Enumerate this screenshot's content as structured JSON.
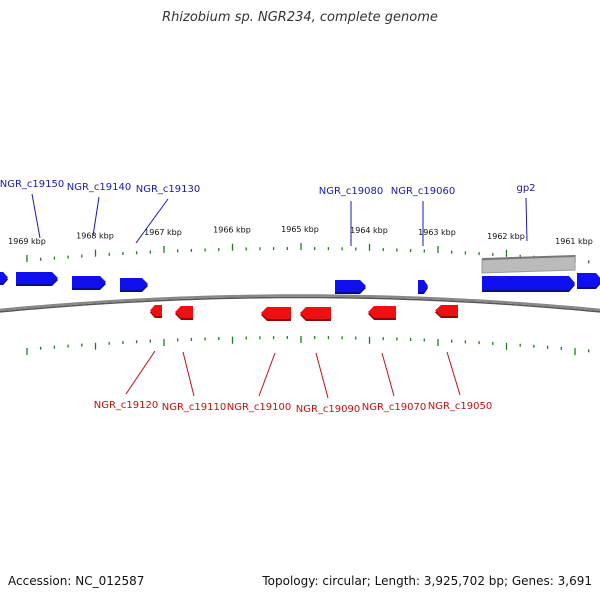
{
  "title": "Rhizobium sp. NGR234, complete genome",
  "footer": {
    "accession": "Accession: NC_012587",
    "summary": "Topology: circular; Length: 3,925,702 bp; Genes: 3,691"
  },
  "colors": {
    "forward_gene": "#1010ee",
    "reverse_gene": "#ee1010",
    "forward_label": "#1a1aa8",
    "reverse_label": "#b81414",
    "tick": "#1e7d1e",
    "backbone": "#888888",
    "other_feature": "#bbbbbb",
    "scale_text": "#111111"
  },
  "scale_labels": [
    "1969 kbp",
    "1968 kbp",
    "1967 kbp",
    "1966 kbp",
    "1965 kbp",
    "1964 kbp",
    "1963 kbp",
    "1962 kbp",
    "1961 kbp"
  ],
  "forward_gene_labels": [
    "NGR_c19150",
    "NGR_c19140",
    "NGR_c19130",
    "NGR_c19080",
    "NGR_c19060",
    "gp2"
  ],
  "reverse_gene_labels": [
    "NGR_c19120",
    "NGR_c19110",
    "NGR_c19100",
    "NGR_c19090",
    "NGR_c19070",
    "NGR_c19050"
  ]
}
